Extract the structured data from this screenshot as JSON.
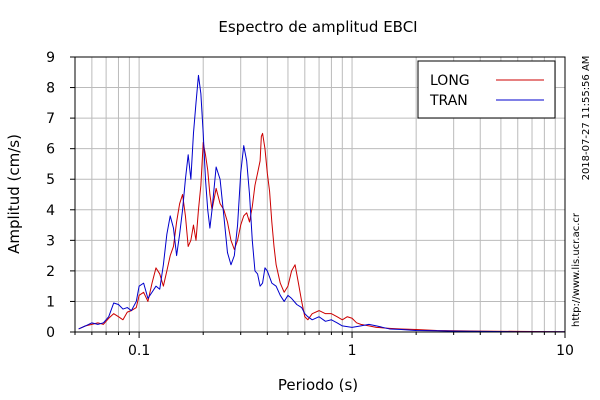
{
  "chart_data": {
    "type": "line",
    "title": "Espectro de amplitud EBCI",
    "xlabel": "Periodo (s)",
    "ylabel": "Amplitud (cm/s)",
    "x_scale": "log",
    "xlim": [
      0.05,
      10
    ],
    "ylim": [
      0,
      9
    ],
    "x_ticks": [
      {
        "value": 0.1,
        "label": "0.1"
      },
      {
        "value": 1,
        "label": "1"
      },
      {
        "value": 10,
        "label": "10"
      }
    ],
    "y_ticks": [
      0,
      1,
      2,
      3,
      4,
      5,
      6,
      7,
      8,
      9
    ],
    "grid": true,
    "legend_position": "top-right",
    "side_labels": {
      "timestamp": "2018-07-27 11:55:56 AM",
      "url": "http://www.lis.ucr.ac.cr"
    },
    "series": [
      {
        "name": "LONG",
        "color": "#cc0000",
        "points": [
          [
            0.052,
            0.1
          ],
          [
            0.056,
            0.2
          ],
          [
            0.06,
            0.25
          ],
          [
            0.064,
            0.3
          ],
          [
            0.068,
            0.25
          ],
          [
            0.072,
            0.45
          ],
          [
            0.076,
            0.6
          ],
          [
            0.08,
            0.5
          ],
          [
            0.084,
            0.4
          ],
          [
            0.088,
            0.65
          ],
          [
            0.092,
            0.7
          ],
          [
            0.097,
            0.8
          ],
          [
            0.1,
            1.2
          ],
          [
            0.105,
            1.3
          ],
          [
            0.11,
            1.0
          ],
          [
            0.115,
            1.6
          ],
          [
            0.12,
            2.1
          ],
          [
            0.125,
            1.9
          ],
          [
            0.13,
            1.5
          ],
          [
            0.135,
            2.0
          ],
          [
            0.14,
            2.5
          ],
          [
            0.145,
            2.8
          ],
          [
            0.15,
            3.6
          ],
          [
            0.155,
            4.2
          ],
          [
            0.16,
            4.5
          ],
          [
            0.165,
            3.8
          ],
          [
            0.17,
            2.8
          ],
          [
            0.175,
            3.0
          ],
          [
            0.18,
            3.5
          ],
          [
            0.185,
            3.0
          ],
          [
            0.19,
            4.0
          ],
          [
            0.195,
            4.8
          ],
          [
            0.2,
            6.2
          ],
          [
            0.205,
            5.8
          ],
          [
            0.21,
            5.3
          ],
          [
            0.215,
            4.5
          ],
          [
            0.22,
            4.0
          ],
          [
            0.23,
            4.7
          ],
          [
            0.24,
            4.2
          ],
          [
            0.25,
            4.0
          ],
          [
            0.26,
            3.6
          ],
          [
            0.27,
            3.0
          ],
          [
            0.28,
            2.7
          ],
          [
            0.29,
            3.0
          ],
          [
            0.3,
            3.5
          ],
          [
            0.31,
            3.8
          ],
          [
            0.32,
            3.9
          ],
          [
            0.33,
            3.6
          ],
          [
            0.34,
            4.1
          ],
          [
            0.35,
            4.8
          ],
          [
            0.36,
            5.2
          ],
          [
            0.37,
            5.6
          ],
          [
            0.375,
            6.4
          ],
          [
            0.38,
            6.5
          ],
          [
            0.39,
            6.0
          ],
          [
            0.4,
            5.2
          ],
          [
            0.41,
            4.6
          ],
          [
            0.42,
            3.6
          ],
          [
            0.43,
            2.8
          ],
          [
            0.44,
            2.2
          ],
          [
            0.46,
            1.6
          ],
          [
            0.48,
            1.3
          ],
          [
            0.5,
            1.5
          ],
          [
            0.52,
            2.0
          ],
          [
            0.54,
            2.2
          ],
          [
            0.56,
            1.6
          ],
          [
            0.58,
            1.0
          ],
          [
            0.6,
            0.5
          ],
          [
            0.62,
            0.4
          ],
          [
            0.65,
            0.6
          ],
          [
            0.7,
            0.7
          ],
          [
            0.75,
            0.6
          ],
          [
            0.8,
            0.6
          ],
          [
            0.85,
            0.5
          ],
          [
            0.9,
            0.4
          ],
          [
            0.95,
            0.5
          ],
          [
            1.0,
            0.45
          ],
          [
            1.05,
            0.3
          ],
          [
            1.1,
            0.25
          ],
          [
            1.2,
            0.2
          ],
          [
            1.3,
            0.15
          ],
          [
            1.5,
            0.12
          ],
          [
            1.7,
            0.1
          ],
          [
            2.0,
            0.08
          ],
          [
            2.5,
            0.05
          ],
          [
            3.0,
            0.04
          ],
          [
            4.0,
            0.03
          ],
          [
            6.0,
            0.02
          ],
          [
            10.0,
            0.01
          ]
        ]
      },
      {
        "name": "TRAN",
        "color": "#0000cc",
        "points": [
          [
            0.052,
            0.1
          ],
          [
            0.056,
            0.2
          ],
          [
            0.06,
            0.3
          ],
          [
            0.064,
            0.25
          ],
          [
            0.068,
            0.3
          ],
          [
            0.072,
            0.5
          ],
          [
            0.076,
            0.95
          ],
          [
            0.08,
            0.9
          ],
          [
            0.084,
            0.75
          ],
          [
            0.088,
            0.8
          ],
          [
            0.092,
            0.7
          ],
          [
            0.097,
            1.0
          ],
          [
            0.1,
            1.5
          ],
          [
            0.105,
            1.6
          ],
          [
            0.11,
            1.1
          ],
          [
            0.115,
            1.3
          ],
          [
            0.12,
            1.5
          ],
          [
            0.125,
            1.4
          ],
          [
            0.13,
            2.2
          ],
          [
            0.135,
            3.2
          ],
          [
            0.14,
            3.8
          ],
          [
            0.145,
            3.4
          ],
          [
            0.15,
            2.5
          ],
          [
            0.155,
            3.2
          ],
          [
            0.16,
            4.0
          ],
          [
            0.165,
            5.0
          ],
          [
            0.17,
            5.8
          ],
          [
            0.175,
            5.0
          ],
          [
            0.18,
            6.5
          ],
          [
            0.185,
            7.5
          ],
          [
            0.19,
            8.4
          ],
          [
            0.195,
            7.8
          ],
          [
            0.2,
            6.5
          ],
          [
            0.205,
            5.0
          ],
          [
            0.21,
            4.0
          ],
          [
            0.215,
            3.4
          ],
          [
            0.22,
            4.0
          ],
          [
            0.23,
            5.4
          ],
          [
            0.24,
            5.0
          ],
          [
            0.25,
            3.8
          ],
          [
            0.26,
            2.6
          ],
          [
            0.27,
            2.2
          ],
          [
            0.28,
            2.5
          ],
          [
            0.29,
            3.5
          ],
          [
            0.3,
            5.2
          ],
          [
            0.31,
            6.1
          ],
          [
            0.32,
            5.6
          ],
          [
            0.33,
            4.5
          ],
          [
            0.34,
            3.0
          ],
          [
            0.35,
            2.0
          ],
          [
            0.36,
            1.9
          ],
          [
            0.37,
            1.5
          ],
          [
            0.38,
            1.6
          ],
          [
            0.39,
            2.1
          ],
          [
            0.4,
            2.0
          ],
          [
            0.42,
            1.6
          ],
          [
            0.44,
            1.5
          ],
          [
            0.46,
            1.2
          ],
          [
            0.48,
            1.0
          ],
          [
            0.5,
            1.2
          ],
          [
            0.52,
            1.1
          ],
          [
            0.55,
            0.9
          ],
          [
            0.58,
            0.8
          ],
          [
            0.6,
            0.6
          ],
          [
            0.62,
            0.5
          ],
          [
            0.65,
            0.4
          ],
          [
            0.7,
            0.5
          ],
          [
            0.75,
            0.35
          ],
          [
            0.8,
            0.4
          ],
          [
            0.85,
            0.3
          ],
          [
            0.9,
            0.2
          ],
          [
            1.0,
            0.15
          ],
          [
            1.1,
            0.2
          ],
          [
            1.2,
            0.25
          ],
          [
            1.3,
            0.2
          ],
          [
            1.5,
            0.1
          ],
          [
            1.7,
            0.08
          ],
          [
            2.0,
            0.05
          ],
          [
            2.5,
            0.04
          ],
          [
            3.0,
            0.03
          ],
          [
            4.0,
            0.02
          ],
          [
            6.0,
            0.01
          ],
          [
            10.0,
            0.01
          ]
        ]
      }
    ]
  }
}
